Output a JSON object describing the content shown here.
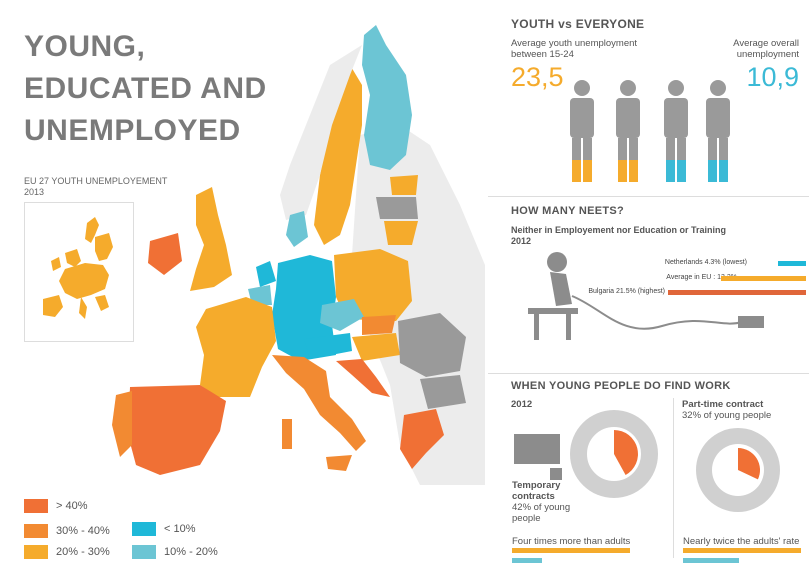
{
  "title": {
    "lines": [
      "YOUNG,",
      "EDUCATED AND",
      "UNEMPLOYED"
    ],
    "subtitle": "EU 27 YOUTH UNEMPLOYEMENT",
    "year": "2013"
  },
  "legend": {
    "items": [
      {
        "label": "> 40%",
        "color": "#f07035"
      },
      {
        "label": "30% - 40%",
        "color": "#f28a32"
      },
      {
        "label": "20% - 30%",
        "color": "#f5ab2c"
      },
      {
        "label": "< 10%",
        "color": "#1fb8d8"
      },
      {
        "label": "10% - 20%",
        "color": "#6cc5d4"
      }
    ]
  },
  "youth_vs_everyone": {
    "heading": "YOUTH vs EVERYONE",
    "youth_label_1": "Average youth unemployment",
    "youth_label_2": "between 15-24",
    "youth_value": "23,5",
    "youth_color": "#f5ab2c",
    "overall_label_1": "Average overall",
    "overall_label_2": "unemployment",
    "overall_value": "10,9",
    "overall_color": "#3bbad6"
  },
  "neets": {
    "heading": "HOW MANY NEETS?",
    "subheading": "Neither in Employement nor Education or Training",
    "year": "2012",
    "bars": [
      {
        "label": "Netherlands 4.3% (lowest)",
        "value": 4.3,
        "color": "#1fb8d8"
      },
      {
        "label": "Average in EU : 13.2%",
        "value": 13.2,
        "color": "#f5ab2c"
      },
      {
        "label": "Bulgaria 21.5% (highest)",
        "value": 21.5,
        "color": "#e0663a"
      }
    ]
  },
  "work": {
    "heading": "WHEN YOUNG PEOPLE DO FIND WORK",
    "year": "2012",
    "temporary_title_1": "Temporary",
    "temporary_title_2": "contracts",
    "temporary_text_1": "42% of young",
    "temporary_text_2": "people",
    "temporary_pct": 42,
    "parttime_title": "Part-time contract",
    "parttime_text": "32% of young people",
    "parttime_pct": 32,
    "temporary_compare": "Four times more than adults",
    "parttime_compare": "Nearly twice the adults' rate"
  }
}
